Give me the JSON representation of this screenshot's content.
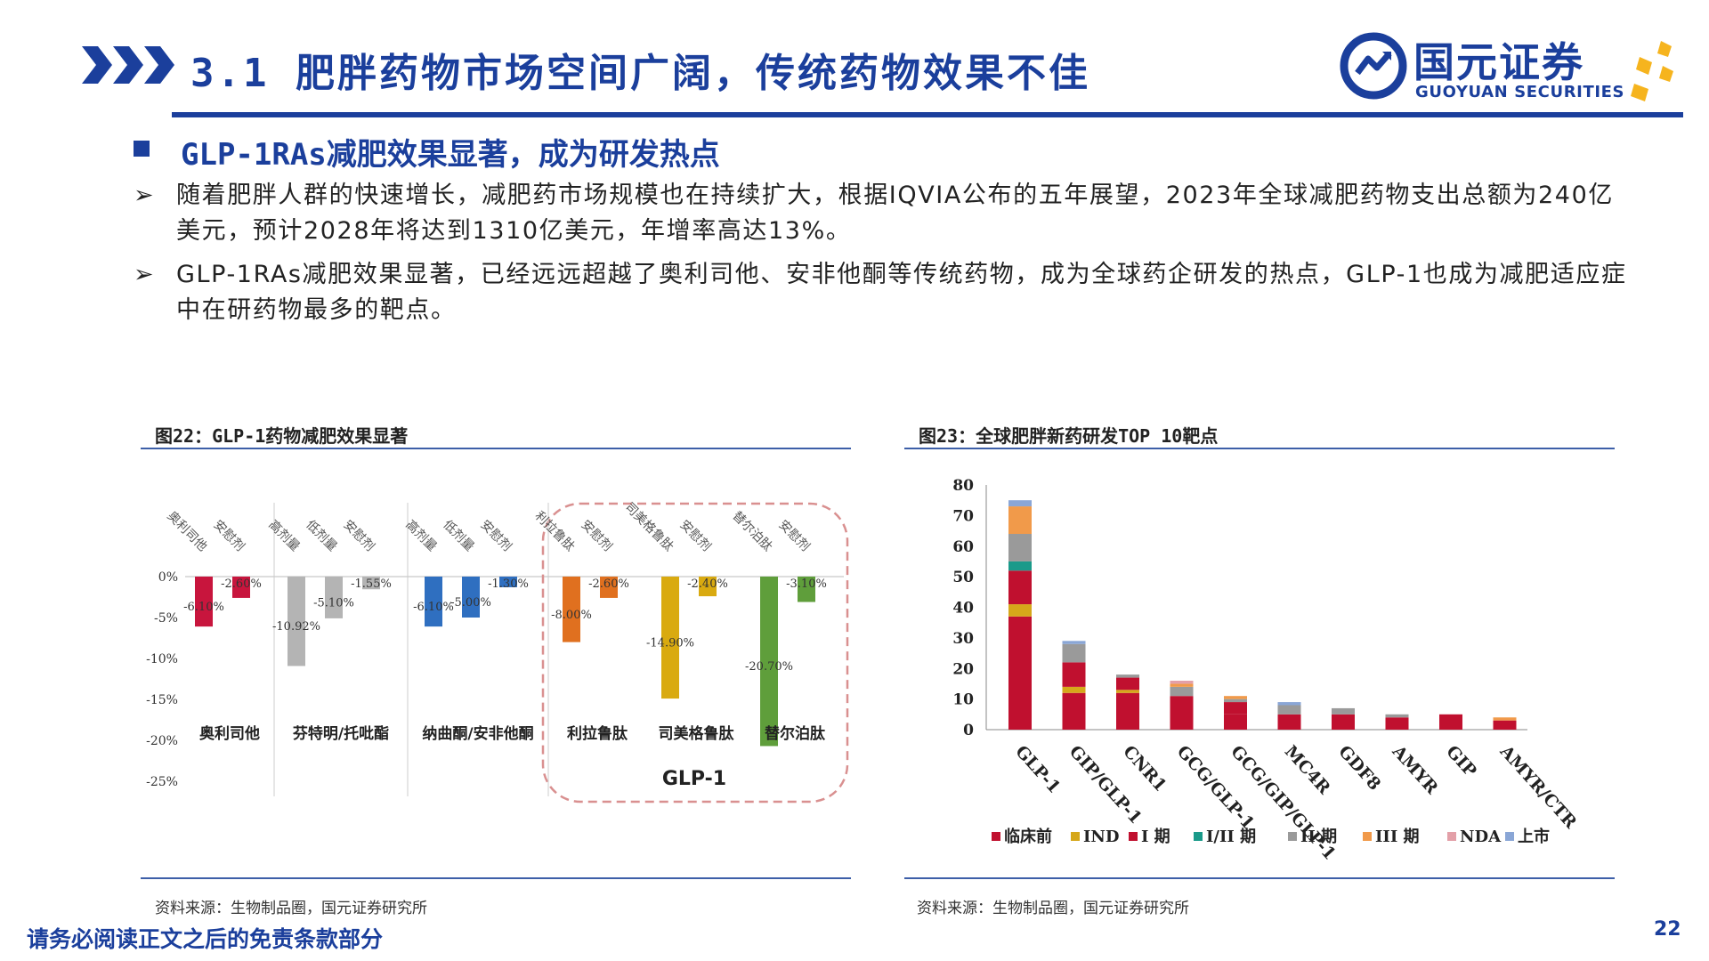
{
  "header": {
    "title": "3.1 肥胖药物市场空间广阔，传统药物效果不佳",
    "logo_cn": "国元证券",
    "logo_en": "GUOYUAN SECURITIES",
    "brand_color": "#1b3f9c",
    "accent_color": "#f6b41e"
  },
  "section": {
    "heading": "GLP-1RAs减肥效果显著，成为研发热点",
    "bullets": [
      {
        "mark": "➢",
        "text": "随着肥胖人群的快速增长，减肥药市场规模也在持续扩大，根据IQVIA公布的五年展望，2023年全球减肥药物支出总额为240亿美元，预计2028年将达到1310亿美元，年增率高达13%。"
      },
      {
        "mark": "➢",
        "text": "GLP-1RAs减肥效果显著，已经远远超越了奥利司他、安非他酮等传统药物，成为全球药企研发的热点，GLP-1也成为减肥适应症中在研药物最多的靶点。"
      }
    ]
  },
  "figures": {
    "left_caption": "图22：GLP-1药物减肥效果显著",
    "right_caption": "图23：全球肥胖新药研发TOP 10靶点",
    "left_source": "资料来源：生物制品圈，国元证券研究所",
    "right_source": "资料来源：生物制品圈，国元证券研究所"
  },
  "footer": {
    "disclaimer": "请务必阅读正文之后的免责条款部分",
    "page": "22"
  },
  "chart_data": [
    {
      "type": "bar",
      "ylim": [
        -25,
        0
      ],
      "yticks": [
        "0%",
        "-5%",
        "-10%",
        "-15%",
        "-20%",
        "-25%"
      ],
      "yticks_values": [
        0,
        -5,
        -10,
        -15,
        -20,
        -25
      ],
      "highlight_label": "GLP-1",
      "groups": [
        {
          "name": "奥利司他",
          "bars": [
            {
              "label": "奥利司他",
              "value": -6.1,
              "value_label": "-6.10%",
              "color": "#c8153d"
            },
            {
              "label": "安慰剂",
              "value": -2.6,
              "value_label": "-2.60%",
              "color": "#c8153d"
            }
          ]
        },
        {
          "name": "芬特明/托吡酯",
          "bars": [
            {
              "label": "高剂量",
              "value": -10.92,
              "value_label": "-10.92%",
              "color": "#b4b4b4"
            },
            {
              "label": "低剂量",
              "value": -5.1,
              "value_label": "-5.10%",
              "color": "#b4b4b4"
            },
            {
              "label": "安慰剂",
              "value": -1.55,
              "value_label": "-1.55%",
              "color": "#b4b4b4"
            }
          ]
        },
        {
          "name": "纳曲酮/安非他酮",
          "bars": [
            {
              "label": "高剂量",
              "value": -6.1,
              "value_label": "-6.10%",
              "color": "#2f6fc0"
            },
            {
              "label": "低剂量",
              "value": -5.0,
              "value_label": "-5.00%",
              "color": "#2f6fc0"
            },
            {
              "label": "安慰剂",
              "value": -1.3,
              "value_label": "-1.30%",
              "color": "#2f6fc0"
            }
          ]
        },
        {
          "name": "利拉鲁肽",
          "bars": [
            {
              "label": "利拉鲁肽",
              "value": -8.0,
              "value_label": "-8.00%",
              "color": "#e0701f"
            },
            {
              "label": "安慰剂",
              "value": -2.6,
              "value_label": "-2.60%",
              "color": "#e0701f"
            }
          ]
        },
        {
          "name": "司美格鲁肽",
          "bars": [
            {
              "label": "司美格鲁肽",
              "value": -14.9,
              "value_label": "-14.90%",
              "color": "#d9aa10"
            },
            {
              "label": "安慰剂",
              "value": -2.4,
              "value_label": "-2.40%",
              "color": "#d9aa10"
            }
          ]
        },
        {
          "name": "替尔泊肽",
          "bars": [
            {
              "label": "替尔泊肽",
              "value": -20.7,
              "value_label": "-20.70%",
              "color": "#5f9e3b"
            },
            {
              "label": "安慰剂",
              "value": -3.1,
              "value_label": "-3.10%",
              "color": "#5f9e3b"
            }
          ]
        }
      ]
    },
    {
      "type": "bar",
      "stacked": true,
      "ylim": [
        0,
        80
      ],
      "yticks": [
        0,
        10,
        20,
        30,
        40,
        50,
        60,
        70,
        80
      ],
      "categories": [
        "GLP-1",
        "GIP/GLP-1",
        "CNR1",
        "GCG/GLP-1",
        "GCG/GIP/GLP-1",
        "MC4R",
        "GDF8",
        "AMYR",
        "GIP",
        "AMYR/CTR"
      ],
      "series": [
        {
          "name": "临床前",
          "color": "#c0102f",
          "values": [
            37,
            12,
            12,
            11,
            5,
            5,
            5,
            4,
            5,
            3
          ]
        },
        {
          "name": "IND",
          "color": "#d6a71a",
          "values": [
            4,
            2,
            1,
            0,
            0,
            0,
            0,
            0,
            0,
            0
          ]
        },
        {
          "name": "I 期",
          "color": "#c0102f",
          "values": [
            11,
            8,
            4,
            0,
            4,
            0,
            0,
            0,
            0,
            0
          ]
        },
        {
          "name": "I/II 期",
          "color": "#1a9a8a",
          "values": [
            3,
            0,
            0,
            0,
            0,
            0,
            0,
            0,
            0,
            0
          ]
        },
        {
          "name": "II 期",
          "color": "#9a9a9a",
          "values": [
            9,
            6,
            1,
            3,
            1,
            3,
            2,
            1,
            0,
            0
          ]
        },
        {
          "name": "III 期",
          "color": "#f19a4a",
          "values": [
            9,
            0,
            0,
            1,
            1,
            0,
            0,
            0,
            0,
            1
          ]
        },
        {
          "name": "NDA",
          "color": "#e3a0a8",
          "values": [
            0,
            0,
            0,
            1,
            0,
            0,
            0,
            0,
            0,
            0
          ]
        },
        {
          "name": "上市",
          "color": "#8aa6d6",
          "values": [
            2,
            1,
            0,
            0,
            0,
            1,
            0,
            0,
            0,
            0
          ]
        }
      ]
    }
  ]
}
